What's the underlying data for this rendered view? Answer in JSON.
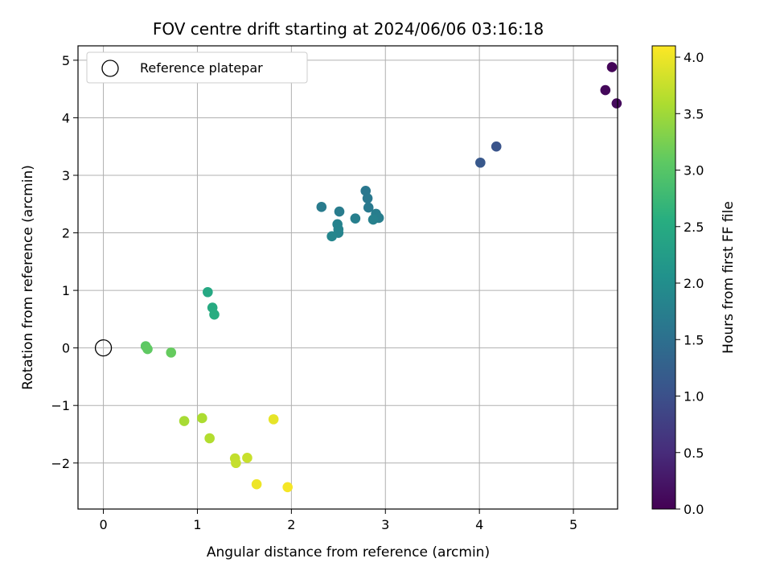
{
  "chart_data": {
    "type": "scatter",
    "title": "FOV centre drift starting at 2024/06/06 03:16:18",
    "xlabel": "Angular distance from reference (arcmin)",
    "ylabel": "Rotation from reference (arcmin)",
    "xlim": [
      -0.27,
      5.47
    ],
    "ylim": [
      -2.8,
      5.25
    ],
    "xticks": [
      0,
      1,
      2,
      3,
      4,
      5
    ],
    "yticks": [
      -2,
      -1,
      0,
      1,
      2,
      3,
      4,
      5
    ],
    "grid": true,
    "legend": {
      "position": "top-left",
      "entries": [
        "Reference platepar"
      ]
    },
    "reference_point": {
      "x": 0,
      "y": 0
    },
    "colorbar": {
      "label": "Hours from first FF file",
      "range": [
        0.0,
        4.1
      ],
      "ticks": [
        "0.0",
        "0.5",
        "1.0",
        "1.5",
        "2.0",
        "2.5",
        "3.0",
        "3.5",
        "4.0"
      ],
      "colormap": "viridis"
    },
    "points": [
      {
        "x": 5.41,
        "y": 4.88,
        "c": 0.05
      },
      {
        "x": 5.34,
        "y": 4.48,
        "c": 0.08
      },
      {
        "x": 5.46,
        "y": 4.25,
        "c": 0.12
      },
      {
        "x": 4.18,
        "y": 3.5,
        "c": 1.05
      },
      {
        "x": 4.01,
        "y": 3.22,
        "c": 1.12
      },
      {
        "x": 2.79,
        "y": 2.73,
        "c": 1.62
      },
      {
        "x": 2.81,
        "y": 2.6,
        "c": 1.64
      },
      {
        "x": 2.82,
        "y": 2.44,
        "c": 1.66
      },
      {
        "x": 2.32,
        "y": 2.45,
        "c": 1.68
      },
      {
        "x": 2.51,
        "y": 2.37,
        "c": 1.7
      },
      {
        "x": 2.9,
        "y": 2.33,
        "c": 1.72
      },
      {
        "x": 2.93,
        "y": 2.26,
        "c": 1.74
      },
      {
        "x": 2.68,
        "y": 2.25,
        "c": 1.76
      },
      {
        "x": 2.87,
        "y": 2.23,
        "c": 1.78
      },
      {
        "x": 2.49,
        "y": 2.15,
        "c": 1.8
      },
      {
        "x": 2.5,
        "y": 2.06,
        "c": 1.82
      },
      {
        "x": 2.5,
        "y": 2.0,
        "c": 1.84
      },
      {
        "x": 2.43,
        "y": 1.94,
        "c": 1.86
      },
      {
        "x": 1.11,
        "y": 0.97,
        "c": 2.45
      },
      {
        "x": 1.16,
        "y": 0.7,
        "c": 2.5
      },
      {
        "x": 1.18,
        "y": 0.58,
        "c": 2.55
      },
      {
        "x": 0.45,
        "y": 0.03,
        "c": 3.05
      },
      {
        "x": 0.47,
        "y": -0.02,
        "c": 3.08
      },
      {
        "x": 0.72,
        "y": -0.08,
        "c": 3.12
      },
      {
        "x": 0.86,
        "y": -1.27,
        "c": 3.55
      },
      {
        "x": 1.05,
        "y": -1.22,
        "c": 3.58
      },
      {
        "x": 1.13,
        "y": -1.57,
        "c": 3.62
      },
      {
        "x": 1.4,
        "y": -1.92,
        "c": 3.72
      },
      {
        "x": 1.41,
        "y": -2.0,
        "c": 3.74
      },
      {
        "x": 1.53,
        "y": -1.91,
        "c": 3.76
      },
      {
        "x": 1.81,
        "y": -1.24,
        "c": 3.95
      },
      {
        "x": 1.63,
        "y": -2.37,
        "c": 4.0
      },
      {
        "x": 1.96,
        "y": -2.42,
        "c": 4.05
      }
    ]
  }
}
